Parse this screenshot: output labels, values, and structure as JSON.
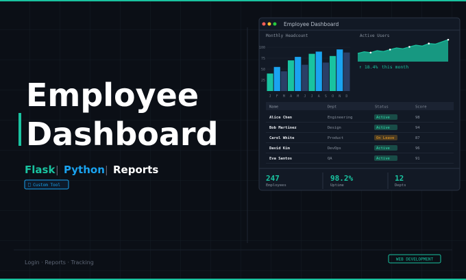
{
  "hero": {
    "title_lines": [
      "Employee",
      "Dashboard"
    ],
    "tags": [
      "Flask",
      "Python",
      "Reports"
    ],
    "separator": "|",
    "button": "⎕ Custom Tool",
    "footer": "Login · Reports · Tracking",
    "badge": "WEB DEVELOPMENT"
  },
  "dashboard": {
    "window_title": "Employee Dashboard",
    "headcount": {
      "type": "bar",
      "title": "Monthly Headcount",
      "categories": [
        "J",
        "F",
        "M",
        "A",
        "M",
        "J",
        "J",
        "A",
        "S",
        "O",
        "N",
        "D"
      ],
      "values": [
        40,
        55,
        45,
        70,
        78,
        60,
        85,
        90,
        65,
        80,
        95,
        88
      ],
      "colors": [
        "#19c3a0",
        "#1aa3f0",
        "#2a3f66",
        "#19c3a0",
        "#1aa3f0",
        "#2a3f66",
        "#19c3a0",
        "#1aa3f0",
        "#2a3f66",
        "#19c3a0",
        "#1aa3f0",
        "#2a3f66"
      ],
      "ylim": [
        0,
        100
      ],
      "yticks": [
        25,
        50,
        75,
        100
      ]
    },
    "active_users": {
      "type": "area",
      "title": "Active Users",
      "values": [
        30,
        36,
        33,
        40,
        37,
        44,
        50,
        47,
        54,
        60,
        57,
        66,
        64,
        72,
        80
      ],
      "color": "#19c3a0",
      "change": "↑ 18.4%",
      "change_note": "this month"
    },
    "table": {
      "header": [
        "Name",
        "Dept",
        "Status",
        "Score"
      ],
      "rows": [
        [
          "Alice Chen",
          "Engineering",
          "Active",
          "98"
        ],
        [
          "Bob Martinez",
          "Design",
          "Active",
          "94"
        ],
        [
          "Carol White",
          "Product",
          "On Leave",
          "87"
        ],
        [
          "David Kim",
          "DevOps",
          "Active",
          "96"
        ],
        [
          "Eva Santos",
          "QA",
          "Active",
          "91"
        ]
      ],
      "status_colors": [
        "#2ee6b0",
        "#2ee6b0",
        "#f0a020",
        "#2ee6b0",
        "#2ee6b0"
      ]
    },
    "stats": [
      {
        "value": "247",
        "label": "Employees"
      },
      {
        "value": "98.2%",
        "label": "Uptime"
      },
      {
        "value": "12",
        "label": "Depts"
      }
    ]
  }
}
